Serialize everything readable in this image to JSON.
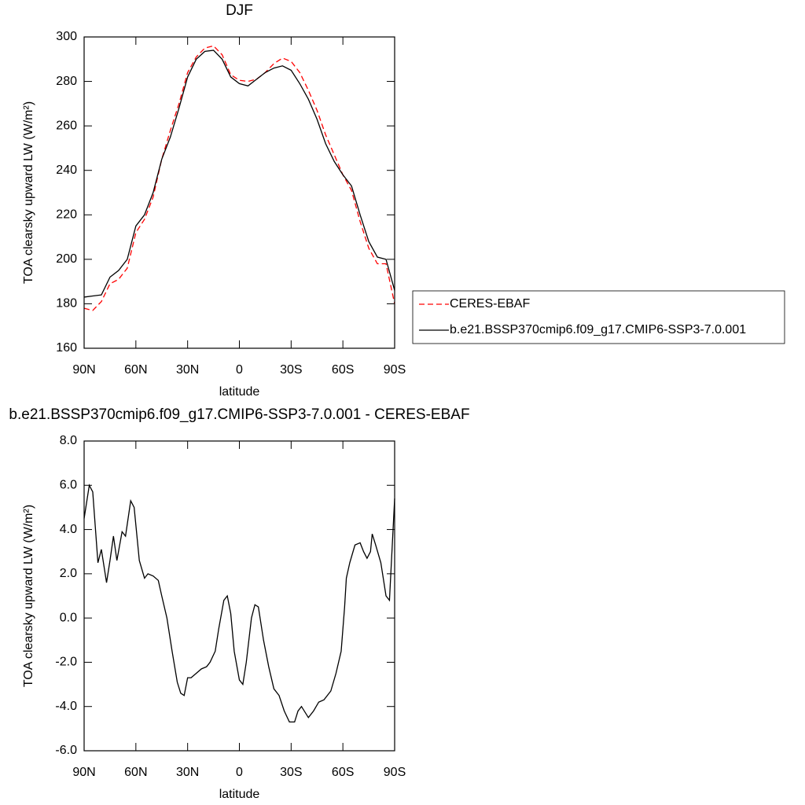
{
  "chart_data": [
    {
      "type": "line",
      "title": "DJF",
      "xlabel": "latitude",
      "ylabel": "TOA clearsky upward LW (W/m²)",
      "x": [
        90,
        85,
        80,
        75,
        70,
        65,
        60,
        55,
        50,
        45,
        40,
        35,
        30,
        25,
        20,
        15,
        10,
        5,
        0,
        -5,
        -10,
        -15,
        -20,
        -25,
        -30,
        -35,
        -40,
        -45,
        -50,
        -55,
        -60,
        -65,
        -70,
        -75,
        -80,
        -85,
        -90
      ],
      "series": [
        {
          "name": "CERES-EBAF",
          "color": "#ff0000",
          "line_style": "dashed",
          "values": [
            178,
            177,
            181,
            189,
            191,
            196,
            212,
            218,
            228,
            245,
            258,
            270,
            284,
            291,
            295,
            296,
            292,
            283,
            280.5,
            280,
            281,
            284,
            288,
            290.5,
            289,
            284,
            276,
            267,
            256,
            247,
            238,
            231,
            217,
            205,
            198,
            198,
            180
          ]
        },
        {
          "name": "b.e21.BSSP370cmip6.f09_g17.CMIP6-SSP3-7.0.001",
          "color": "#000000",
          "line_style": "solid",
          "values": [
            183,
            183.5,
            184,
            192,
            195,
            200,
            215,
            220,
            230,
            245,
            255,
            268,
            282,
            290,
            293.5,
            294,
            290,
            282,
            279,
            278,
            281,
            284,
            286,
            287,
            285,
            279,
            272,
            263,
            252,
            244,
            238,
            233,
            220,
            208,
            201,
            200,
            186
          ]
        }
      ],
      "xlim": [
        90,
        -90
      ],
      "xticks": [
        {
          "value": 90,
          "label": "90N"
        },
        {
          "value": 60,
          "label": "60N"
        },
        {
          "value": 30,
          "label": "30N"
        },
        0,
        {
          "value": -30,
          "label": "30S"
        },
        {
          "value": -60,
          "label": "60S"
        },
        {
          "value": -90,
          "label": "90S"
        }
      ],
      "ylim": [
        160,
        300
      ],
      "yticks": [
        160,
        180,
        200,
        220,
        240,
        260,
        280,
        300
      ],
      "legend": "right"
    },
    {
      "type": "line",
      "title": "b.e21.BSSP370cmip6.f09_g17.CMIP6-SSP3-7.0.001 - CERES-EBAF",
      "xlabel": "latitude",
      "ylabel": "TOA clearsky upward LW (W/m²)",
      "x": [
        90,
        87,
        85,
        82,
        80,
        77,
        75,
        73,
        71,
        68,
        66,
        63,
        61,
        58,
        55,
        53,
        50,
        47,
        45,
        42,
        39,
        36,
        34,
        32,
        30,
        28,
        25,
        22,
        19,
        17,
        14,
        12,
        9,
        7,
        5,
        3,
        0,
        -2,
        -4,
        -7,
        -9,
        -11,
        -14,
        -17,
        -20,
        -23,
        -26,
        -29,
        -32,
        -34,
        -36,
        -40,
        -43,
        -46,
        -49,
        -53,
        -56,
        -59,
        -61,
        -62,
        -64,
        -67,
        -70,
        -72,
        -74,
        -76,
        -77,
        -79,
        -82,
        -85,
        -87,
        -90
      ],
      "series": [
        {
          "color": "#000000",
          "line_style": "solid",
          "values": [
            4.5,
            6.0,
            5.7,
            2.5,
            3.1,
            1.6,
            2.6,
            3.7,
            2.6,
            3.9,
            3.7,
            5.3,
            5.0,
            2.6,
            1.8,
            2.0,
            1.9,
            1.7,
            1.0,
            0.0,
            -1.5,
            -2.9,
            -3.4,
            -3.5,
            -2.7,
            -2.7,
            -2.5,
            -2.3,
            -2.2,
            -2.0,
            -1.5,
            -0.5,
            0.8,
            1.0,
            0.2,
            -1.5,
            -2.8,
            -3.0,
            -2.0,
            0.0,
            0.6,
            0.5,
            -1.0,
            -2.2,
            -3.2,
            -3.5,
            -4.2,
            -4.7,
            -4.7,
            -4.2,
            -4.0,
            -4.5,
            -4.2,
            -3.8,
            -3.7,
            -3.3,
            -2.5,
            -1.5,
            0.5,
            1.8,
            2.5,
            3.3,
            3.4,
            3.0,
            2.7,
            3.0,
            3.8,
            3.3,
            2.5,
            1.0,
            0.8,
            5.4
          ]
        }
      ],
      "xlim": [
        90,
        -90
      ],
      "xticks": [
        {
          "value": 90,
          "label": "90N"
        },
        {
          "value": 60,
          "label": "60N"
        },
        {
          "value": 30,
          "label": "30N"
        },
        0,
        {
          "value": -30,
          "label": "30S"
        },
        {
          "value": -60,
          "label": "60S"
        },
        {
          "value": -90,
          "label": "90S"
        }
      ],
      "ylim": [
        -6,
        8
      ],
      "yticks": [
        {
          "value": -6,
          "label": "-6.0"
        },
        {
          "value": -4,
          "label": "-4.0"
        },
        {
          "value": -2,
          "label": "-2.0"
        },
        {
          "value": 0,
          "label": "0.0"
        },
        {
          "value": 2,
          "label": "2.0"
        },
        {
          "value": 4,
          "label": "4.0"
        },
        {
          "value": 6,
          "label": "6.0"
        },
        {
          "value": 8,
          "label": "8.0"
        }
      ]
    }
  ]
}
